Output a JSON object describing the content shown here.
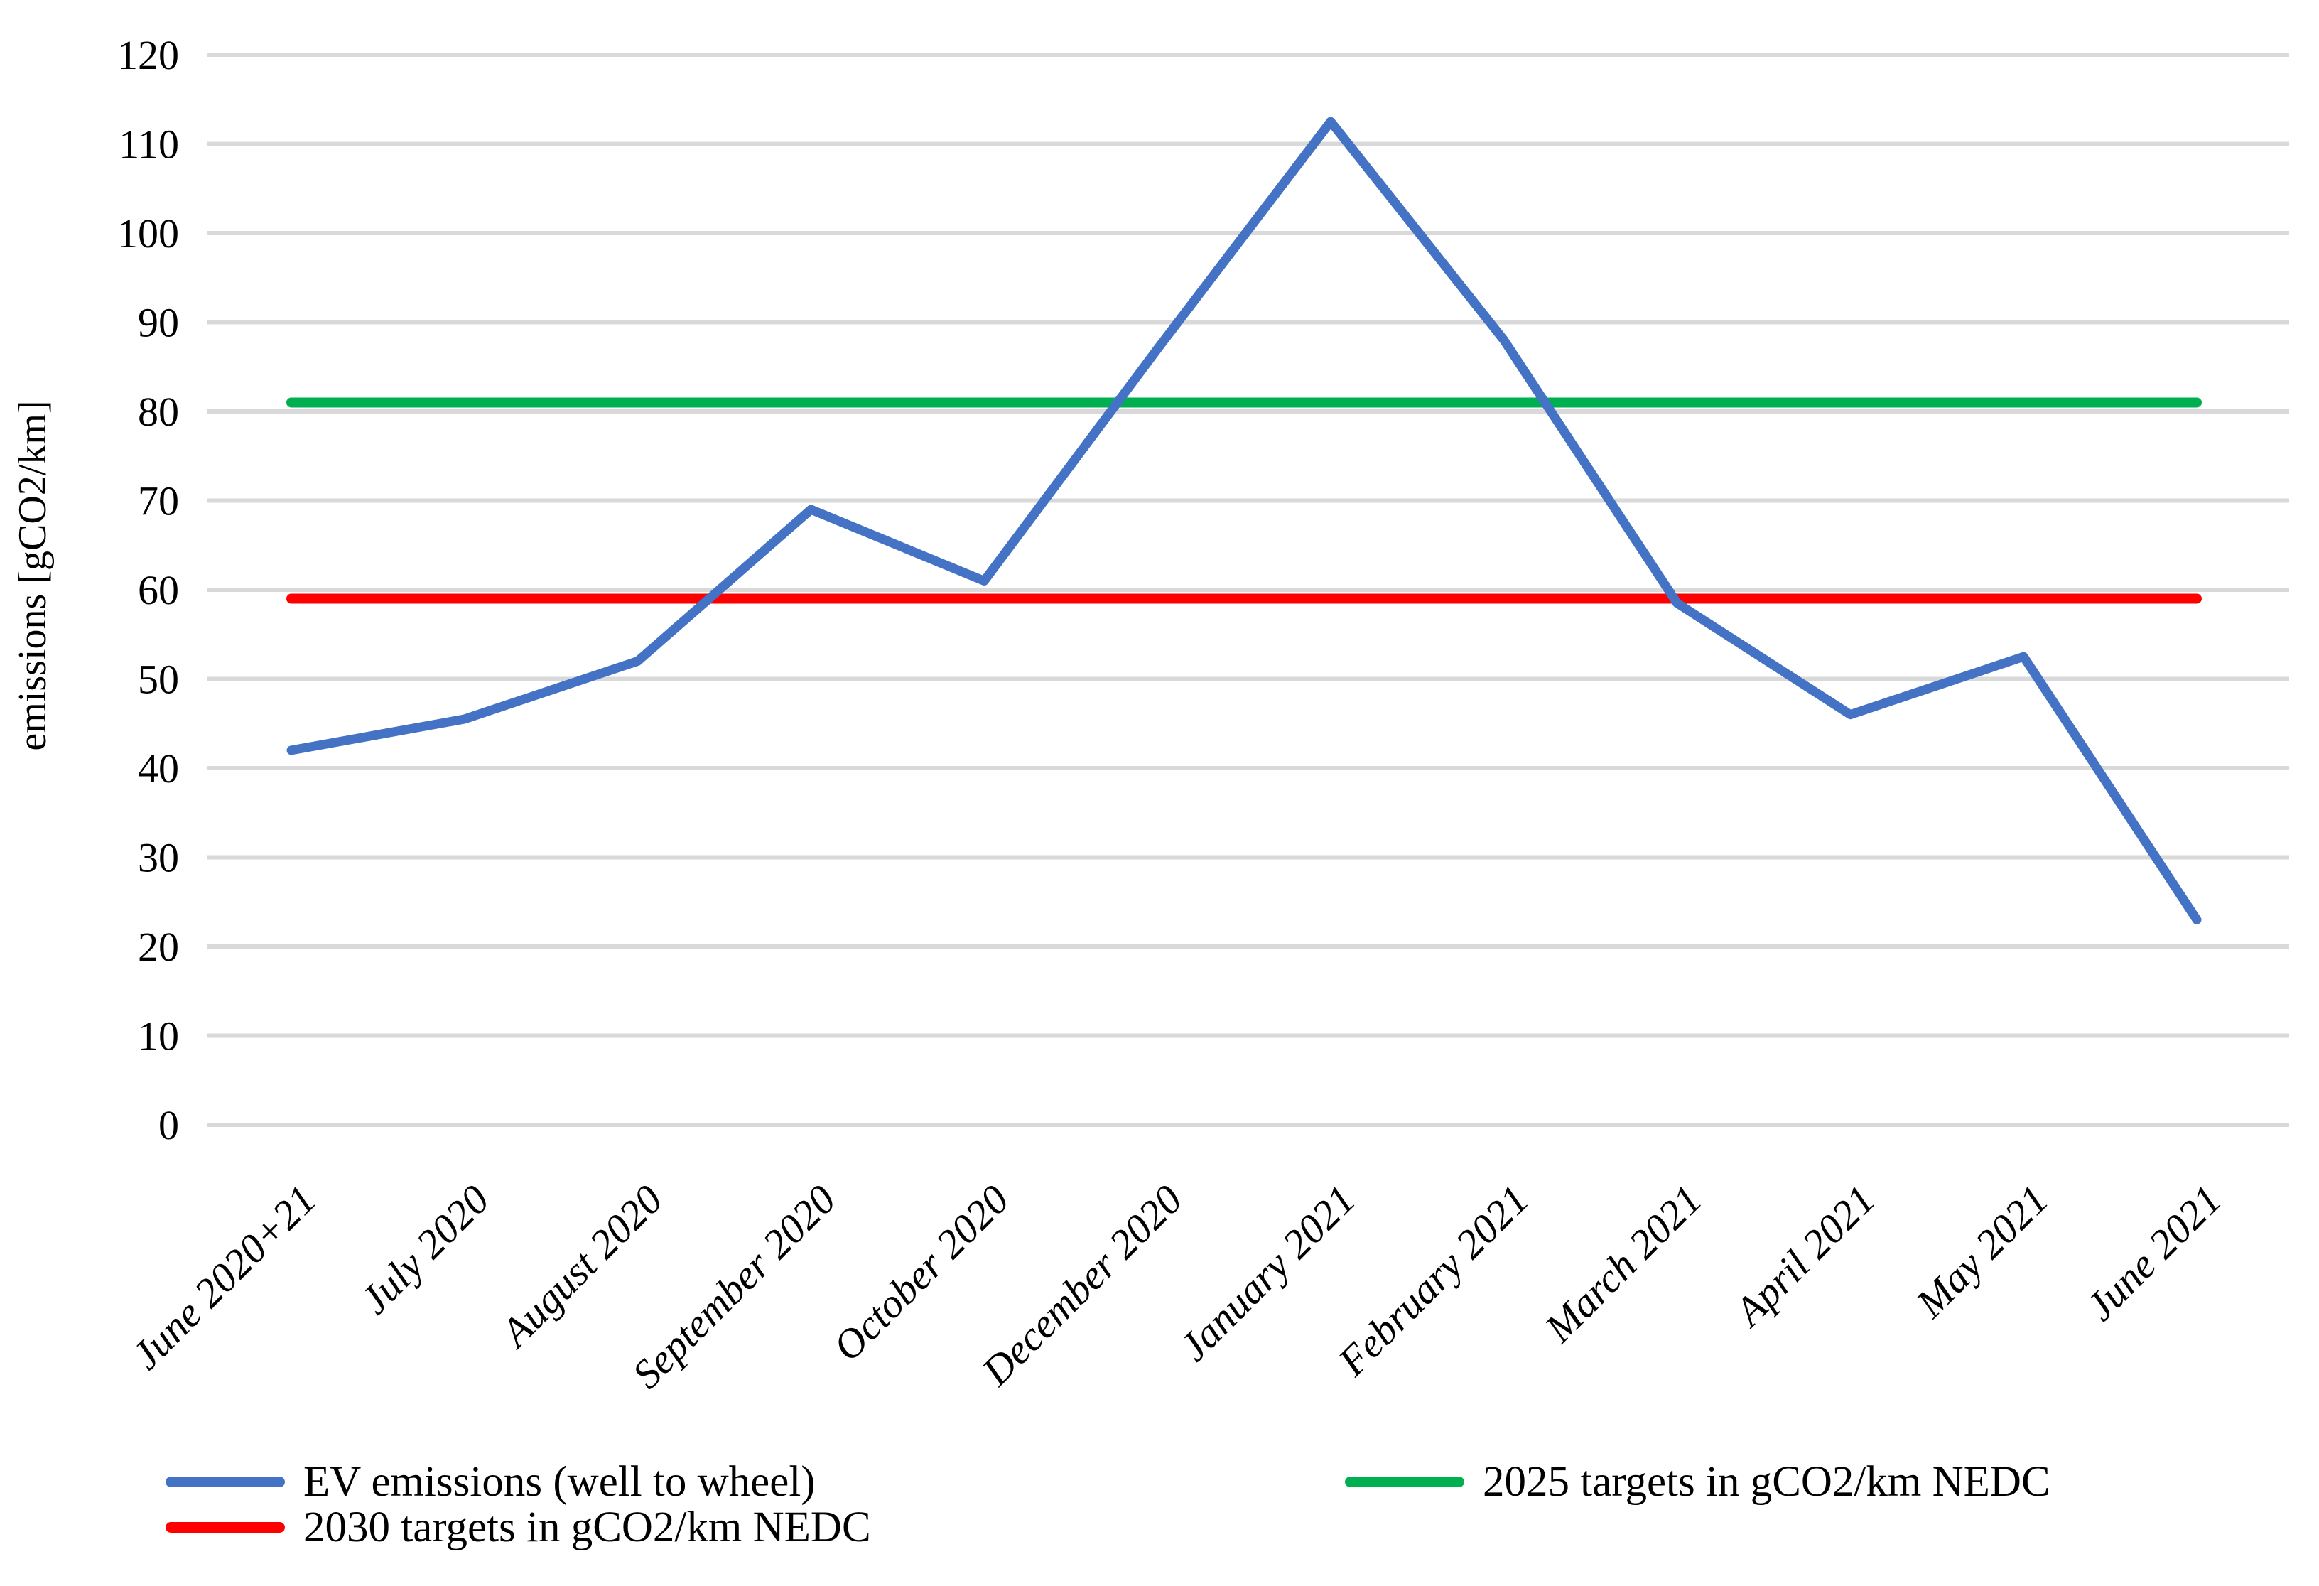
{
  "chart_data": {
    "type": "line",
    "title": "",
    "xlabel": "",
    "ylabel": "emissions [gCO2/km]",
    "ylim": [
      0,
      120
    ],
    "y_tick_step": 10,
    "y_ticks": [
      0,
      10,
      20,
      30,
      40,
      50,
      60,
      70,
      80,
      90,
      100,
      110,
      120
    ],
    "grid": "horizontal",
    "legend_position": "bottom",
    "categories": [
      "June 2020+21",
      "July 2020",
      "August 2020",
      "September 2020",
      "October 2020",
      "December 2020",
      "January 2021",
      "February 2021",
      "March 2021",
      "April 2021",
      "May 2021",
      "June 2021"
    ],
    "series": [
      {
        "name": "EV emissions (well to wheel)",
        "type": "line",
        "color": "#4472C4",
        "values": [
          42,
          45.5,
          52,
          69,
          61,
          87,
          112.5,
          88,
          58.5,
          46,
          52.5,
          23
        ]
      },
      {
        "name": "2025 targets in gCO2/km NEDC",
        "type": "constant-line",
        "color": "#00B050",
        "value": 81
      },
      {
        "name": "2030 targets in gCO2/km NEDC",
        "type": "constant-line",
        "color": "#FF0000",
        "value": 59
      }
    ],
    "colors": {
      "gridline": "#D9D9D9",
      "text": "#000000",
      "background": "#FFFFFF"
    }
  }
}
